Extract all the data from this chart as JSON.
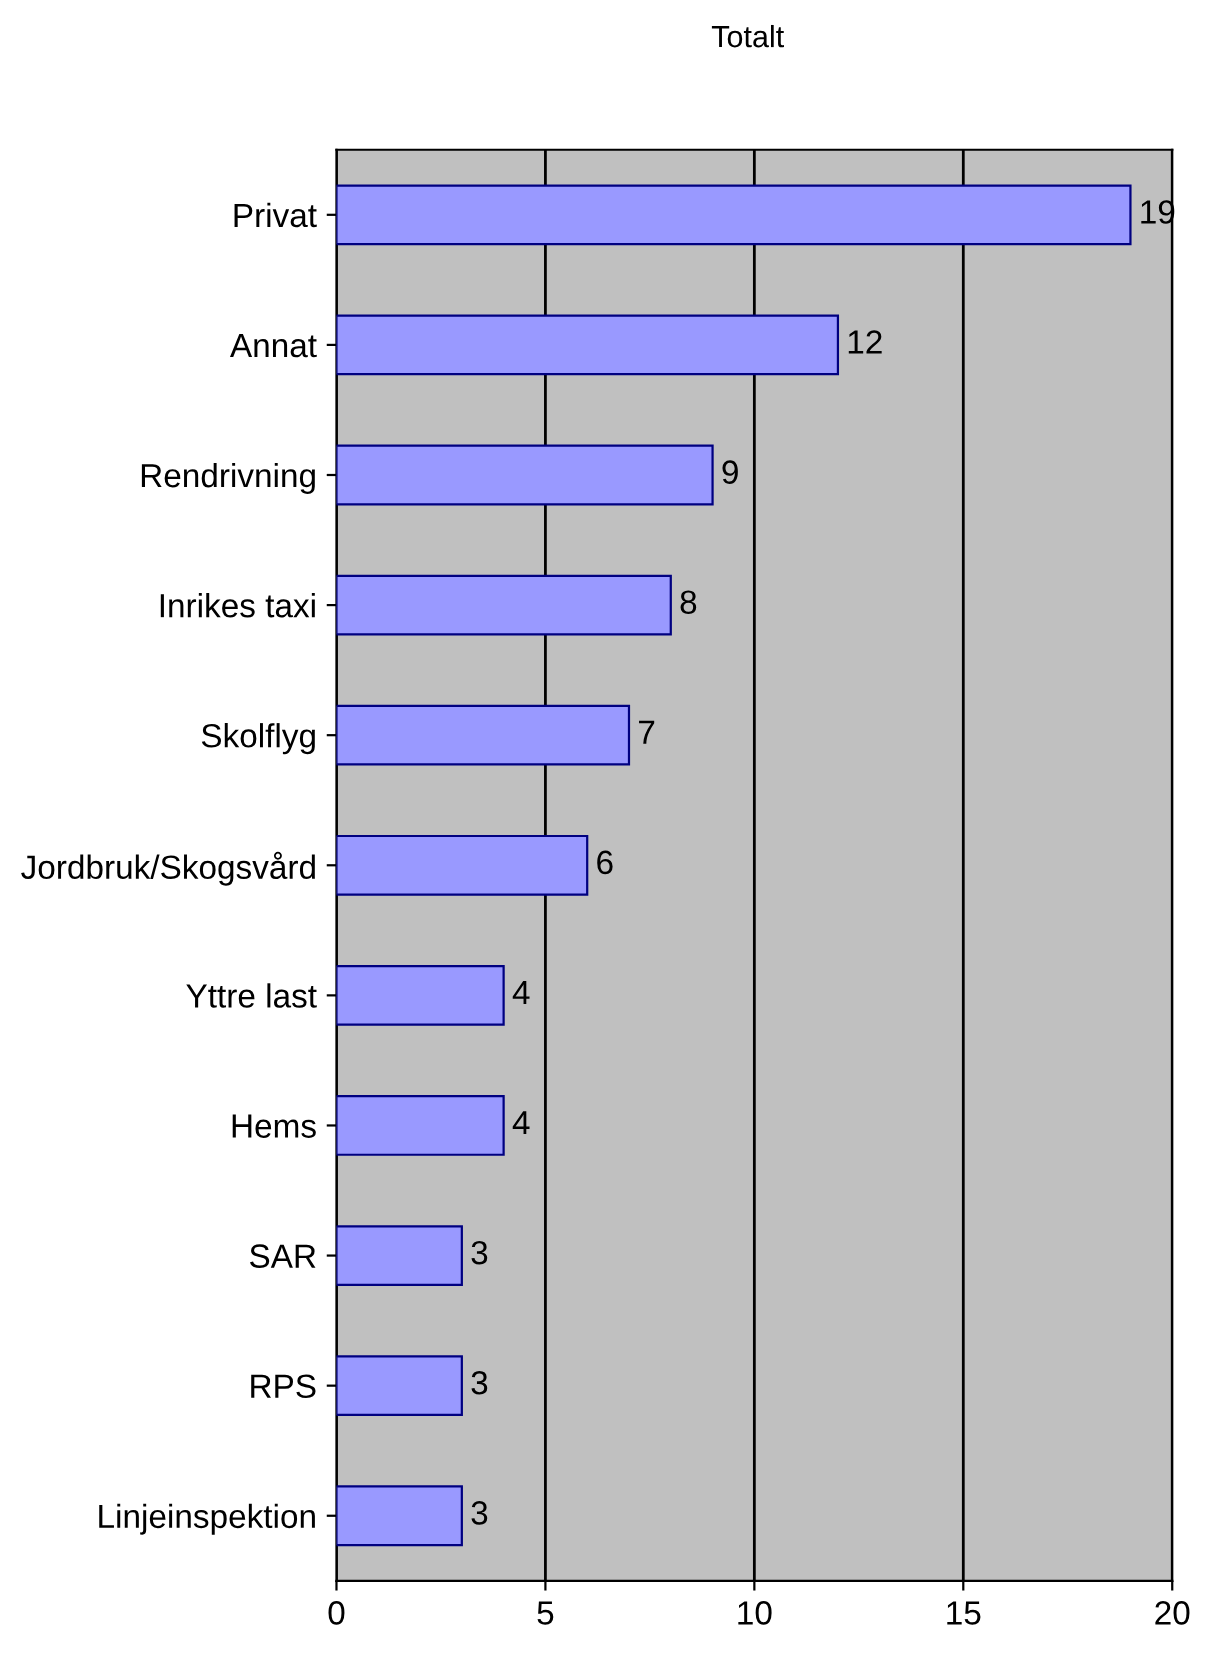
{
  "chart_data": {
    "type": "bar",
    "orientation": "horizontal",
    "title": "Totalt",
    "categories": [
      "Privat",
      "Annat",
      "Rendrivning",
      "Inrikes taxi",
      "Skolflyg",
      "Jordbruk/Skogsvård",
      "Yttre last",
      "Hems",
      "SAR",
      "RPS",
      "Linjeinspektion"
    ],
    "values": [
      19,
      12,
      9,
      8,
      7,
      6,
      4,
      4,
      3,
      3,
      3
    ],
    "color": "#9999ff",
    "xlim": [
      0,
      20
    ],
    "xticks": [
      0,
      5,
      10,
      15,
      20
    ],
    "grid": "x",
    "data_labels": true
  }
}
